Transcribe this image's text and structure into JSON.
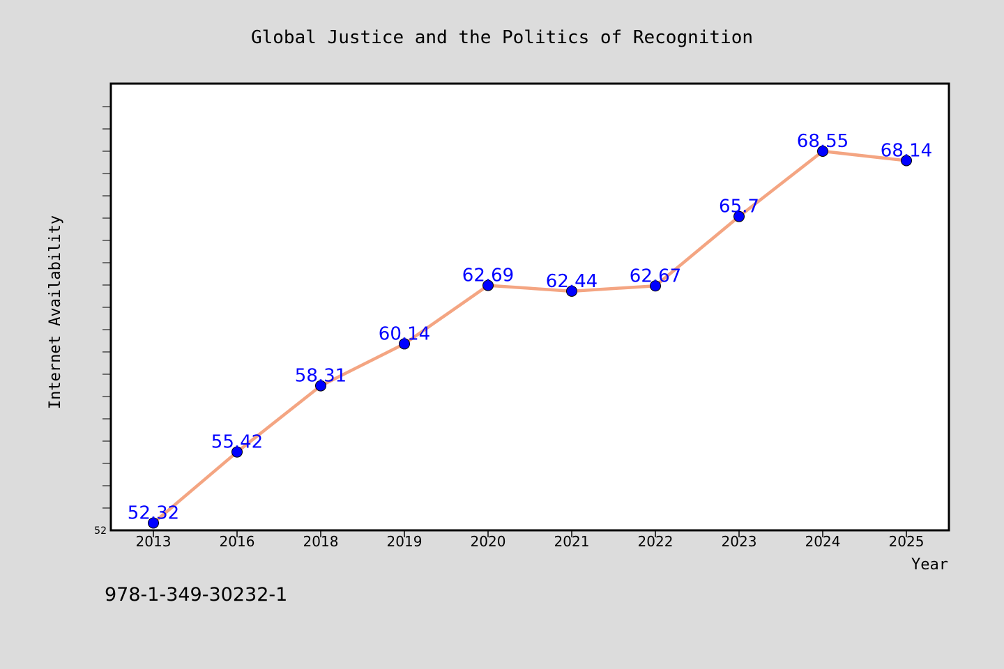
{
  "caption": "978-1-349-30232-1",
  "chart_data": {
    "type": "line",
    "title": "Global Justice and the Politics of Recognition",
    "xlabel": "Year",
    "ylabel": "Internet Availability",
    "categories": [
      "2013",
      "2016",
      "2018",
      "2019",
      "2020",
      "2021",
      "2022",
      "2023",
      "2024",
      "2025"
    ],
    "series": [
      {
        "values": [
          52.32,
          55.42,
          58.31,
          60.14,
          62.69,
          62.44,
          62.67,
          65.7,
          68.55,
          68.14
        ],
        "labels": [
          "52.32",
          "55.42",
          "58.31",
          "60.14",
          "62.69",
          "62.44",
          "62.67",
          "65.7",
          "68.55",
          "68.14"
        ]
      }
    ],
    "y_tick_labels": [
      "52"
    ],
    "ylim": [
      52,
      71.5
    ],
    "grid": false,
    "colors": {
      "line": "#f4a582",
      "marker": "#0000ff",
      "data_label": "#0000ff",
      "background": "#dcdcdc",
      "plot_background": "#ffffff",
      "frame": "#000000"
    }
  }
}
